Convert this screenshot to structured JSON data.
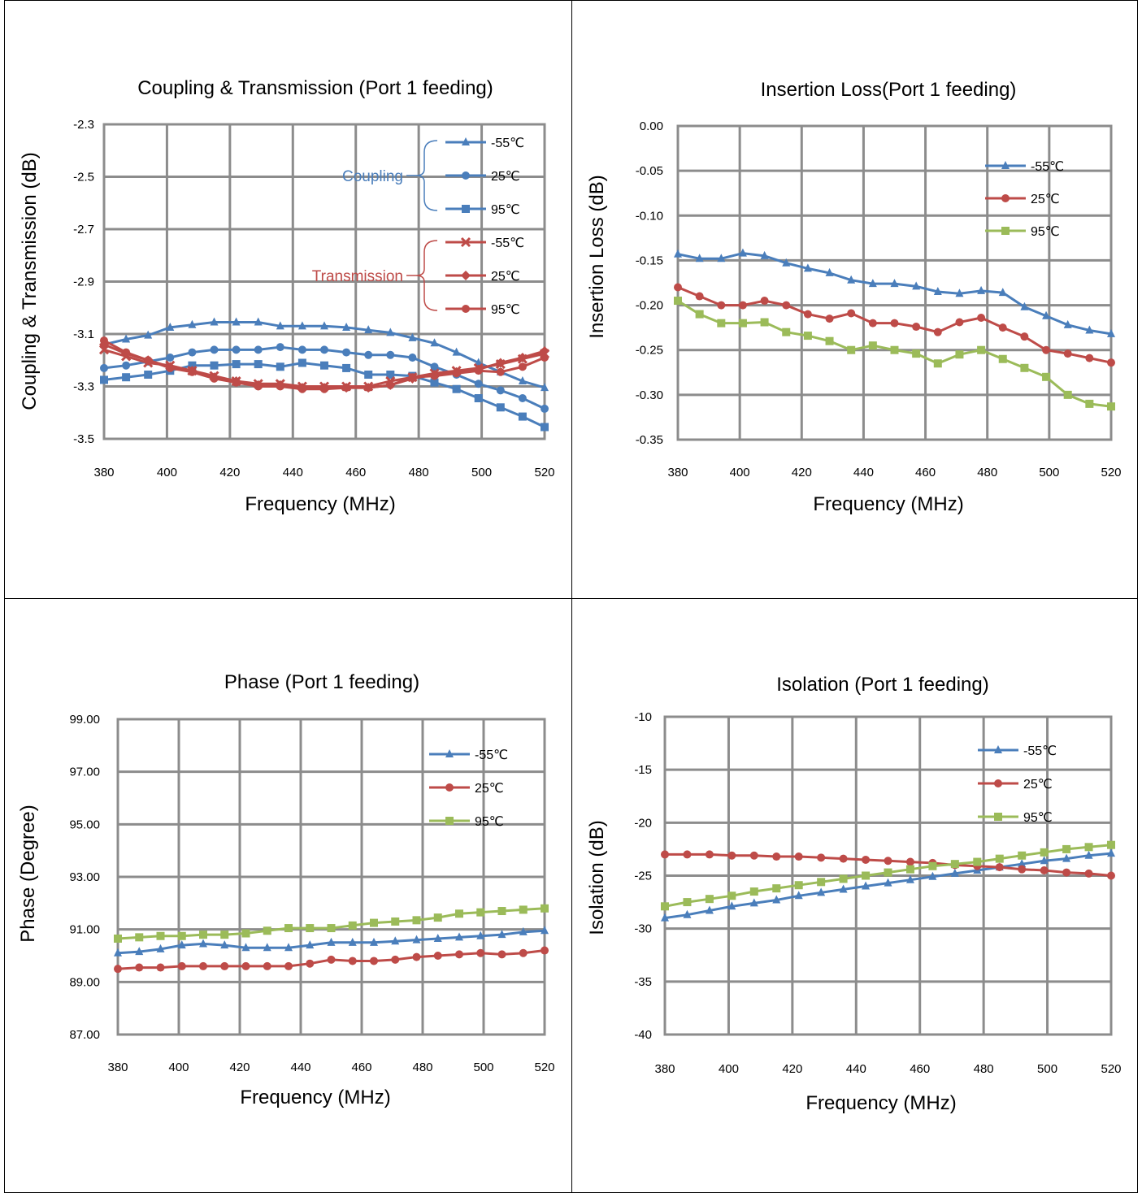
{
  "chart_data": [
    {
      "type": "line",
      "title": "Coupling & Transmission (Port 1 feeding)",
      "xlabel": "Frequency (MHz)",
      "ylabel": "Coupling & Transmission (dB)",
      "xlim": [
        380,
        520
      ],
      "ylim": [
        -3.5,
        -2.3
      ],
      "xticks": [
        380,
        400,
        420,
        440,
        460,
        480,
        500,
        520
      ],
      "yticks": [
        -2.3,
        -2.5,
        -2.7,
        -2.9,
        -3.1,
        -3.3,
        -3.5
      ],
      "ytick_decimals": 1,
      "grid": true,
      "legend_position": "top-right",
      "legend_groups": [
        {
          "label": "Coupling",
          "color": "#4a7ebb",
          "series_index": [
            0,
            1,
            2
          ]
        },
        {
          "label": "Transmission",
          "color": "#be4b48",
          "series_index": [
            3,
            4,
            5
          ]
        }
      ],
      "x": [
        380,
        387,
        394,
        401,
        408,
        415,
        422,
        429,
        436,
        443,
        450,
        457,
        464,
        471,
        478,
        485,
        492,
        499,
        506,
        513,
        520
      ],
      "series": [
        {
          "name": "-55℃",
          "color": "#4a7ebb",
          "marker": "triangle",
          "values": [
            -3.14,
            -3.12,
            -3.105,
            -3.075,
            -3.065,
            -3.055,
            -3.055,
            -3.055,
            -3.07,
            -3.07,
            -3.07,
            -3.075,
            -3.085,
            -3.095,
            -3.115,
            -3.135,
            -3.17,
            -3.21,
            -3.245,
            -3.28,
            -3.305
          ]
        },
        {
          "name": "25℃",
          "color": "#4a7ebb",
          "marker": "circle",
          "values": [
            -3.23,
            -3.22,
            -3.205,
            -3.19,
            -3.17,
            -3.16,
            -3.16,
            -3.16,
            -3.15,
            -3.16,
            -3.16,
            -3.17,
            -3.18,
            -3.18,
            -3.19,
            -3.225,
            -3.255,
            -3.29,
            -3.315,
            -3.345,
            -3.385
          ]
        },
        {
          "name": "95℃",
          "color": "#4a7ebb",
          "marker": "square",
          "values": [
            -3.275,
            -3.265,
            -3.255,
            -3.24,
            -3.22,
            -3.22,
            -3.215,
            -3.215,
            -3.225,
            -3.21,
            -3.22,
            -3.23,
            -3.255,
            -3.255,
            -3.26,
            -3.285,
            -3.31,
            -3.345,
            -3.38,
            -3.415,
            -3.455
          ]
        },
        {
          "name": "-55℃",
          "color": "#be4b48",
          "marker": "cross",
          "values": [
            -3.16,
            -3.185,
            -3.21,
            -3.22,
            -3.24,
            -3.26,
            -3.28,
            -3.29,
            -3.29,
            -3.3,
            -3.3,
            -3.3,
            -3.3,
            -3.28,
            -3.265,
            -3.25,
            -3.24,
            -3.23,
            -3.215,
            -3.195,
            -3.175
          ]
        },
        {
          "name": "25℃",
          "color": "#be4b48",
          "marker": "diamond",
          "values": [
            -3.14,
            -3.175,
            -3.2,
            -3.225,
            -3.24,
            -3.265,
            -3.28,
            -3.295,
            -3.295,
            -3.305,
            -3.305,
            -3.305,
            -3.305,
            -3.295,
            -3.27,
            -3.255,
            -3.245,
            -3.235,
            -3.21,
            -3.19,
            -3.165
          ]
        },
        {
          "name": "95℃",
          "color": "#be4b48",
          "marker": "circle",
          "values": [
            -3.125,
            -3.17,
            -3.2,
            -3.23,
            -3.245,
            -3.27,
            -3.285,
            -3.3,
            -3.3,
            -3.31,
            -3.31,
            -3.305,
            -3.305,
            -3.295,
            -3.265,
            -3.26,
            -3.25,
            -3.24,
            -3.245,
            -3.225,
            -3.19
          ]
        }
      ]
    },
    {
      "type": "line",
      "title": "Insertion Loss(Port 1 feeding)",
      "xlabel": "Frequency (MHz)",
      "ylabel": "Insertion Loss (dB)",
      "xlim": [
        380,
        520
      ],
      "ylim": [
        -0.35,
        0.0
      ],
      "xticks": [
        380,
        400,
        420,
        440,
        460,
        480,
        500,
        520
      ],
      "yticks": [
        0.0,
        -0.05,
        -0.1,
        -0.15,
        -0.2,
        -0.25,
        -0.3,
        -0.35
      ],
      "ytick_decimals": 2,
      "grid": true,
      "legend_position": "top-right",
      "x": [
        380,
        387,
        394,
        401,
        408,
        415,
        422,
        429,
        436,
        443,
        450,
        457,
        464,
        471,
        478,
        485,
        492,
        499,
        506,
        513,
        520
      ],
      "series": [
        {
          "name": "-55℃",
          "color": "#4a7ebb",
          "marker": "triangle",
          "values": [
            -0.143,
            -0.148,
            -0.148,
            -0.142,
            -0.145,
            -0.153,
            -0.159,
            -0.164,
            -0.172,
            -0.176,
            -0.176,
            -0.179,
            -0.185,
            -0.187,
            -0.184,
            -0.186,
            -0.202,
            -0.212,
            -0.222,
            -0.228,
            -0.232
          ]
        },
        {
          "name": "25℃",
          "color": "#be4b48",
          "marker": "circle",
          "values": [
            -0.18,
            -0.19,
            -0.2,
            -0.2,
            -0.195,
            -0.2,
            -0.21,
            -0.215,
            -0.209,
            -0.22,
            -0.22,
            -0.224,
            -0.23,
            -0.219,
            -0.214,
            -0.225,
            -0.235,
            -0.25,
            -0.254,
            -0.259,
            -0.264
          ]
        },
        {
          "name": "95℃",
          "color": "#9bbb59",
          "marker": "square",
          "values": [
            -0.195,
            -0.21,
            -0.22,
            -0.22,
            -0.219,
            -0.23,
            -0.234,
            -0.24,
            -0.25,
            -0.245,
            -0.25,
            -0.254,
            -0.265,
            -0.255,
            -0.25,
            -0.26,
            -0.27,
            -0.28,
            -0.3,
            -0.31,
            -0.313
          ]
        }
      ]
    },
    {
      "type": "line",
      "title": "Phase (Port 1 feeding)",
      "xlabel": "Frequency (MHz)",
      "ylabel": "Phase (Degree)",
      "xlim": [
        380,
        520
      ],
      "ylim": [
        87.0,
        99.0
      ],
      "xticks": [
        380,
        400,
        420,
        440,
        460,
        480,
        500,
        520
      ],
      "yticks": [
        99.0,
        97.0,
        95.0,
        93.0,
        91.0,
        89.0,
        87.0
      ],
      "ytick_decimals": 2,
      "grid": true,
      "legend_position": "top-right",
      "x": [
        380,
        387,
        394,
        401,
        408,
        415,
        422,
        429,
        436,
        443,
        450,
        457,
        464,
        471,
        478,
        485,
        492,
        499,
        506,
        513,
        520
      ],
      "series": [
        {
          "name": "-55℃",
          "color": "#4a7ebb",
          "marker": "triangle",
          "values": [
            90.1,
            90.15,
            90.25,
            90.4,
            90.45,
            90.4,
            90.3,
            90.3,
            90.3,
            90.4,
            90.5,
            90.5,
            90.5,
            90.55,
            90.6,
            90.65,
            90.7,
            90.75,
            90.8,
            90.9,
            90.95
          ]
        },
        {
          "name": "25℃",
          "color": "#be4b48",
          "marker": "circle",
          "values": [
            89.5,
            89.55,
            89.55,
            89.6,
            89.6,
            89.6,
            89.6,
            89.6,
            89.6,
            89.7,
            89.85,
            89.8,
            89.8,
            89.85,
            89.95,
            90.0,
            90.05,
            90.1,
            90.05,
            90.1,
            90.2
          ]
        },
        {
          "name": "95℃",
          "color": "#9bbb59",
          "marker": "square",
          "values": [
            90.65,
            90.7,
            90.75,
            90.75,
            90.8,
            90.8,
            90.85,
            90.95,
            91.05,
            91.05,
            91.05,
            91.15,
            91.25,
            91.3,
            91.35,
            91.45,
            91.6,
            91.65,
            91.7,
            91.75,
            91.8
          ]
        }
      ]
    },
    {
      "type": "line",
      "title": "Isolation (Port 1 feeding)",
      "xlabel": "Frequency (MHz)",
      "ylabel": "Isolation (dB)",
      "xlim": [
        380,
        520
      ],
      "ylim": [
        -40,
        -10
      ],
      "xticks": [
        380,
        400,
        420,
        440,
        460,
        480,
        500,
        520
      ],
      "yticks": [
        -10,
        -15,
        -20,
        -25,
        -30,
        -35,
        -40
      ],
      "ytick_decimals": 0,
      "grid": true,
      "legend_position": "top-right",
      "x": [
        380,
        387,
        394,
        401,
        408,
        415,
        422,
        429,
        436,
        443,
        450,
        457,
        464,
        471,
        478,
        485,
        492,
        499,
        506,
        513,
        520
      ],
      "series": [
        {
          "name": "-55℃",
          "color": "#4a7ebb",
          "marker": "triangle",
          "values": [
            -29.0,
            -28.7,
            -28.3,
            -27.9,
            -27.6,
            -27.3,
            -26.9,
            -26.6,
            -26.3,
            -26.0,
            -25.7,
            -25.4,
            -25.1,
            -24.8,
            -24.5,
            -24.2,
            -23.9,
            -23.6,
            -23.4,
            -23.1,
            -22.9
          ]
        },
        {
          "name": "25℃",
          "color": "#be4b48",
          "marker": "circle",
          "values": [
            -23.0,
            -23.0,
            -23.0,
            -23.1,
            -23.1,
            -23.2,
            -23.2,
            -23.3,
            -23.4,
            -23.5,
            -23.6,
            -23.7,
            -23.8,
            -24.0,
            -24.1,
            -24.2,
            -24.4,
            -24.5,
            -24.7,
            -24.8,
            -25.0
          ]
        },
        {
          "name": "95℃",
          "color": "#9bbb59",
          "marker": "square",
          "values": [
            -27.9,
            -27.5,
            -27.2,
            -26.9,
            -26.5,
            -26.2,
            -25.9,
            -25.6,
            -25.3,
            -25.0,
            -24.7,
            -24.4,
            -24.1,
            -23.9,
            -23.7,
            -23.4,
            -23.1,
            -22.8,
            -22.5,
            -22.3,
            -22.1
          ]
        }
      ]
    }
  ]
}
